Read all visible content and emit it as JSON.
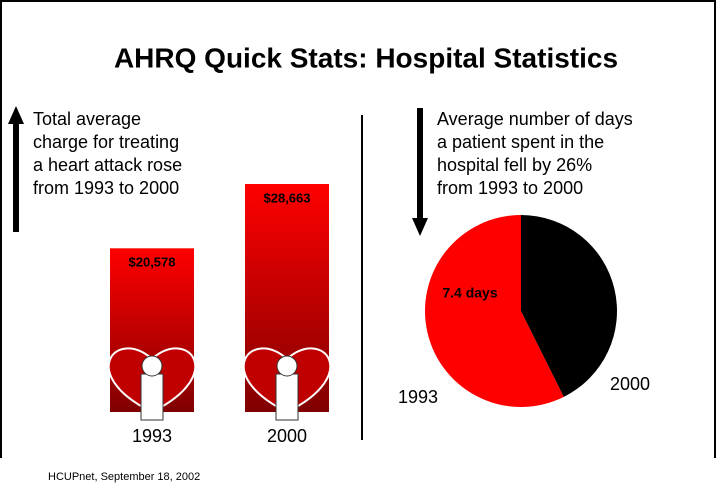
{
  "title": "AHRQ Quick Stats:  Hospital Statistics",
  "footer": "HCUPnet, September 18, 2002",
  "chart_data": [
    {
      "type": "bar",
      "annotation": [
        "Total average",
        "charge for treating",
        "a heart attack rose",
        "from 1993 to 2000"
      ],
      "categories": [
        "1993",
        "2000"
      ],
      "values": [
        20578,
        28663
      ],
      "value_labels": [
        "$20,578",
        "$28,663"
      ],
      "color": "#ff0000"
    },
    {
      "type": "pie",
      "annotation": [
        "Average number of days",
        "a patient spent in the",
        "hospital fell by 26%",
        "from 1993 to 2000"
      ],
      "categories": [
        "1993",
        "2000"
      ],
      "values": [
        7.4,
        5.5
      ],
      "value_labels": [
        "7.4 days",
        null
      ],
      "colors": [
        "#ff0000",
        "#000000"
      ]
    }
  ]
}
